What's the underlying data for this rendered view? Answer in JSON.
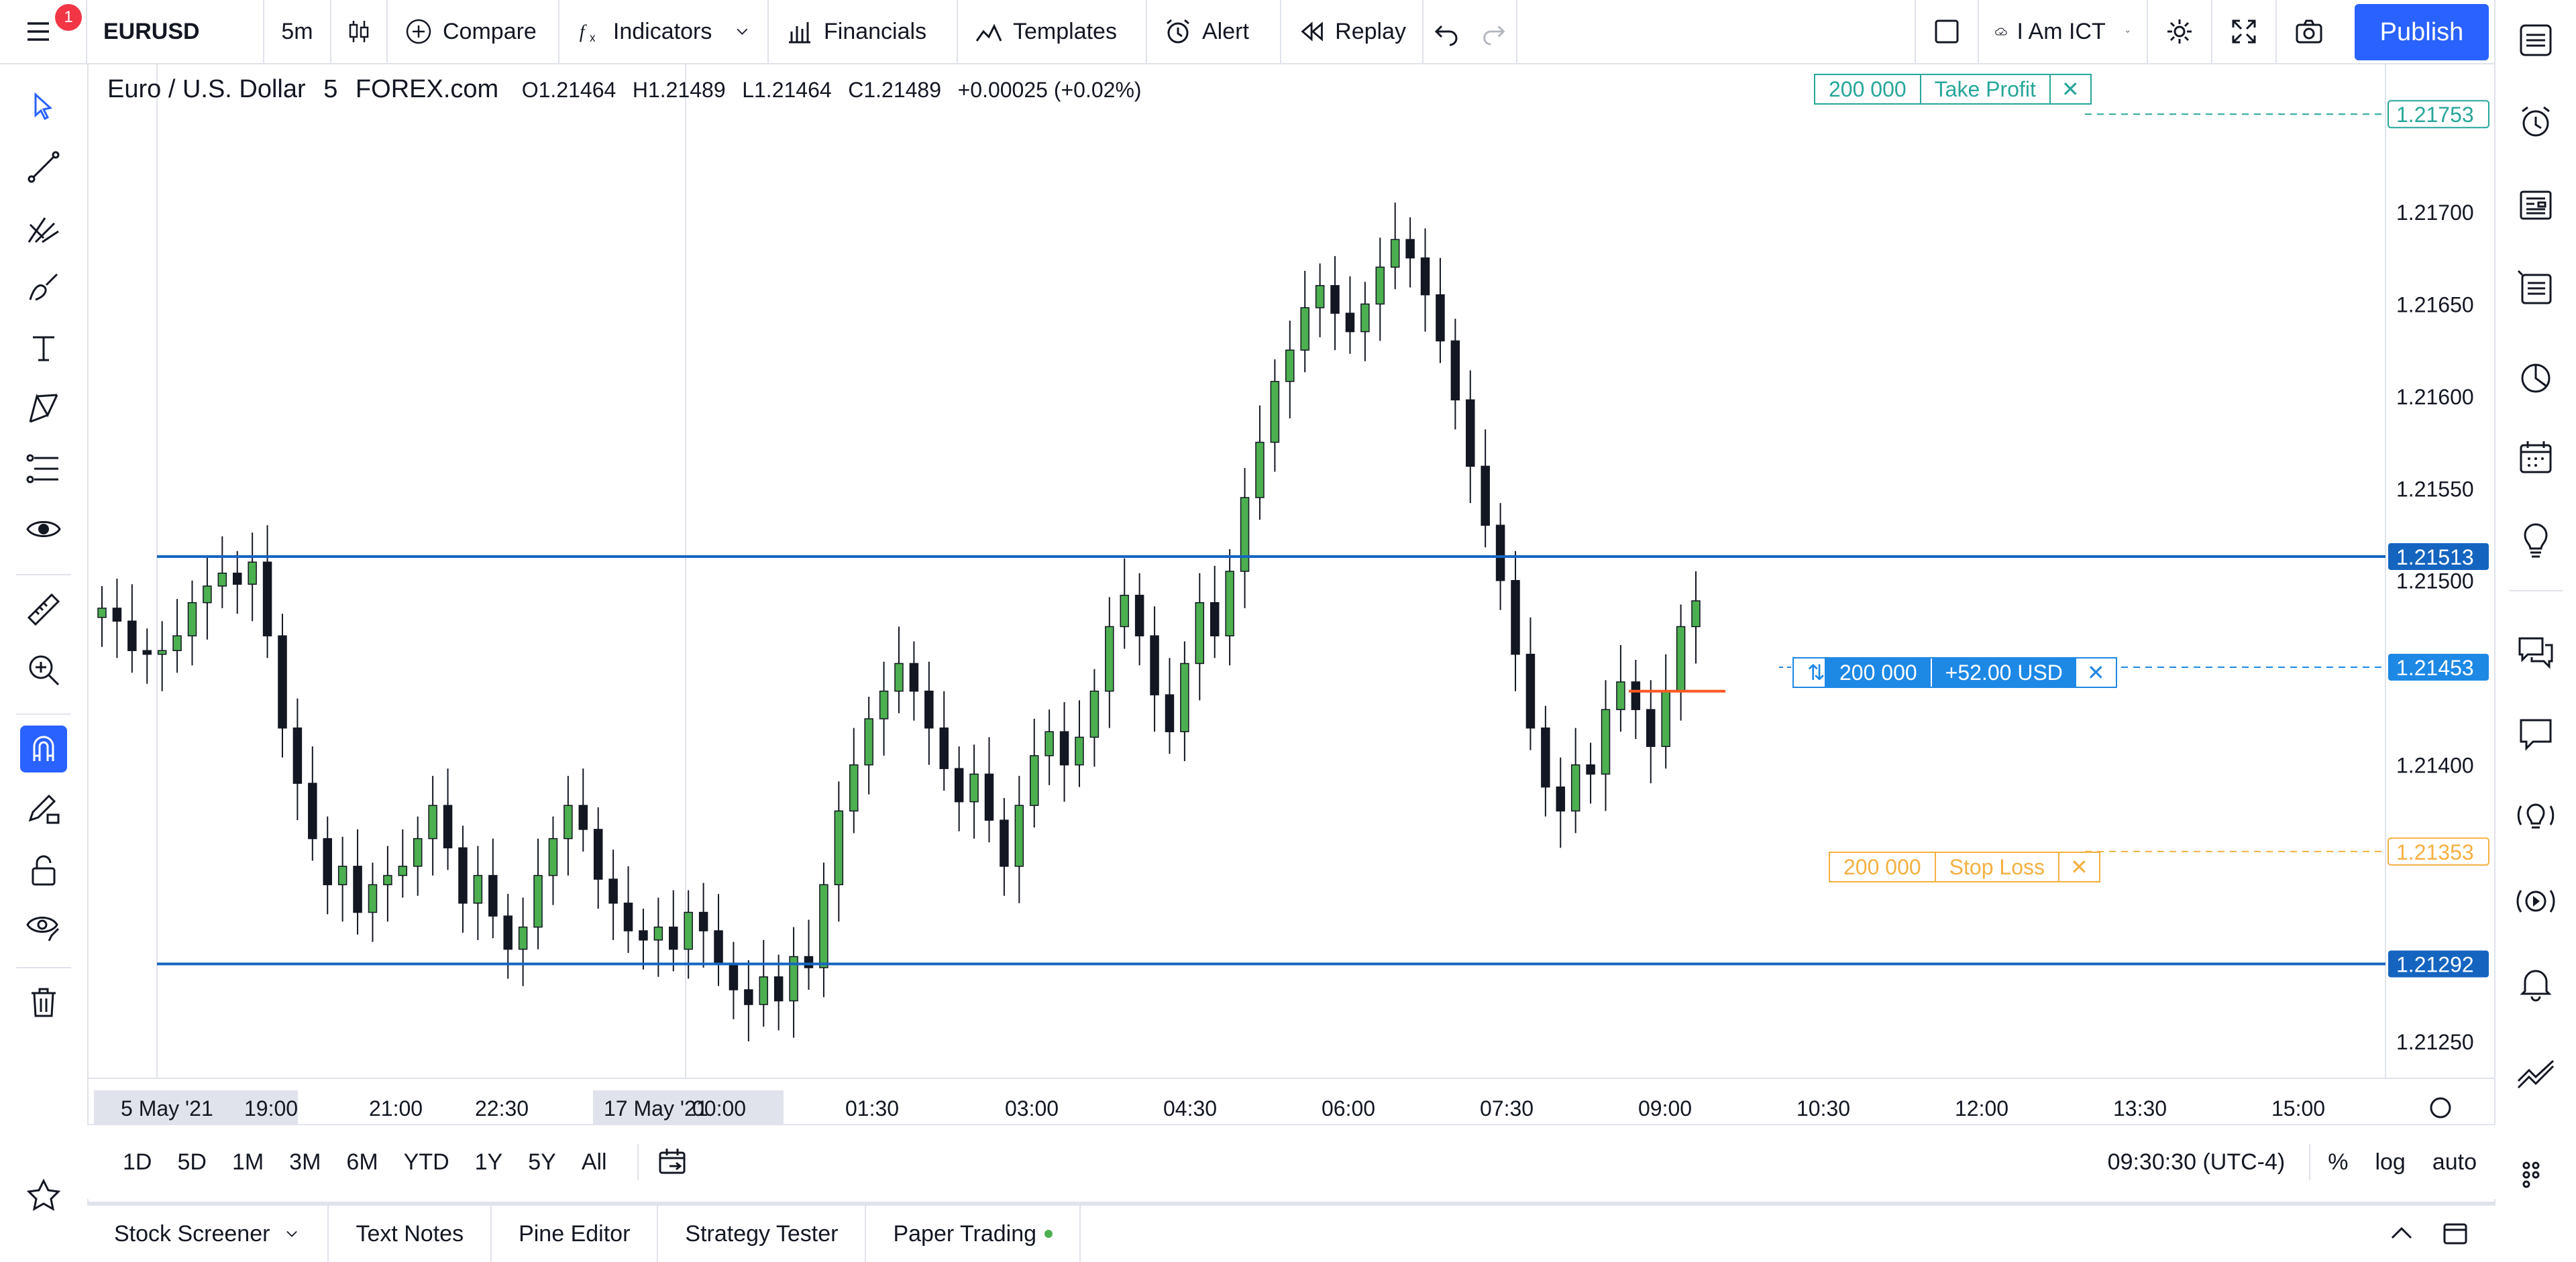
{
  "toolbar": {
    "notification_count": "1",
    "symbol": "EURUSD",
    "interval": "5m",
    "compare_label": "Compare",
    "indicators_label": "Indicators",
    "financials_label": "Financials",
    "templates_label": "Templates",
    "alert_label": "Alert",
    "replay_label": "Replay",
    "layout_name": "I Am ICT",
    "publish_label": "Publish"
  },
  "legend": {
    "title": "Euro / U.S. Dollar",
    "interval": "5",
    "exchange": "FOREX.com",
    "open": "O1.21464",
    "high": "H1.21489",
    "low": "L1.21464",
    "close": "C1.21489",
    "change": "+0.00025 (+0.02%)"
  },
  "orders": {
    "take_profit": {
      "qty": "200 000",
      "label": "Take Profit",
      "price": "1.21753"
    },
    "position": {
      "qty": "200 000",
      "pnl": "+52.00 USD",
      "price": "1.21453"
    },
    "stop_loss": {
      "qty": "200 000",
      "label": "Stop Loss",
      "price": "1.21353"
    }
  },
  "levels": {
    "upper": "1.21513",
    "lower": "1.21292"
  },
  "price_axis": [
    "1.21700",
    "1.21650",
    "1.21600",
    "1.21550",
    "1.21500",
    "1.21400",
    "1.21250"
  ],
  "time_axis": [
    "5 May '21",
    "19:00",
    "21:00",
    "22:30",
    "17 May '21",
    "00:00",
    "01:30",
    "03:00",
    "04:30",
    "06:00",
    "07:30",
    "09:00",
    "10:30",
    "12:00",
    "13:30",
    "15:00"
  ],
  "ranges": [
    "1D",
    "5D",
    "1M",
    "3M",
    "6M",
    "YTD",
    "1Y",
    "5Y",
    "All"
  ],
  "clock": "09:30:30 (UTC-4)",
  "scale_options": {
    "percent": "%",
    "log": "log",
    "auto": "auto"
  },
  "panels": [
    "Stock Screener",
    "Text Notes",
    "Pine Editor",
    "Strategy Tester",
    "Paper Trading"
  ],
  "colors": {
    "accent": "#2962ff",
    "level_line": "#1565c0",
    "take_profit": "#26a69a",
    "stop_loss": "#f5b041",
    "position": "#1e88e5",
    "candle_up": "#4caf50",
    "candle_down": "#131722"
  },
  "chart_data": {
    "type": "candlestick",
    "symbol": "EURUSD",
    "timeframe": "5",
    "ylim": [
      1.2123,
      1.2178
    ],
    "closes": [
      1.21485,
      1.21478,
      1.21462,
      1.2146,
      1.21462,
      1.2147,
      1.21488,
      1.21497,
      1.21504,
      1.21498,
      1.2151,
      1.2147,
      1.2142,
      1.2139,
      1.2136,
      1.21335,
      1.21345,
      1.2132,
      1.21335,
      1.2134,
      1.21345,
      1.2136,
      1.21378,
      1.21355,
      1.21325,
      1.2134,
      1.21318,
      1.213,
      1.21312,
      1.2134,
      1.2136,
      1.21378,
      1.21365,
      1.21338,
      1.21325,
      1.2131,
      1.21305,
      1.21312,
      1.213,
      1.2132,
      1.2131,
      1.21292,
      1.21278,
      1.2127,
      1.21285,
      1.21272,
      1.21296,
      1.2129,
      1.21335,
      1.21375,
      1.214,
      1.21425,
      1.2144,
      1.21455,
      1.2144,
      1.2142,
      1.21398,
      1.2138,
      1.21395,
      1.2137,
      1.21345,
      1.21378,
      1.21405,
      1.21418,
      1.214,
      1.21415,
      1.2144,
      1.21475,
      1.21492,
      1.2147,
      1.21438,
      1.21418,
      1.21455,
      1.21488,
      1.2147,
      1.21505,
      1.21545,
      1.21575,
      1.21608,
      1.21625,
      1.21648,
      1.2166,
      1.21645,
      1.21635,
      1.2165,
      1.2167,
      1.21685,
      1.21675,
      1.21655,
      1.2163,
      1.21598,
      1.21562,
      1.2153,
      1.215,
      1.2146,
      1.2142,
      1.21388,
      1.21375,
      1.214,
      1.21395,
      1.2143,
      1.21445,
      1.2143,
      1.2141,
      1.2144,
      1.21475,
      1.21489
    ]
  }
}
